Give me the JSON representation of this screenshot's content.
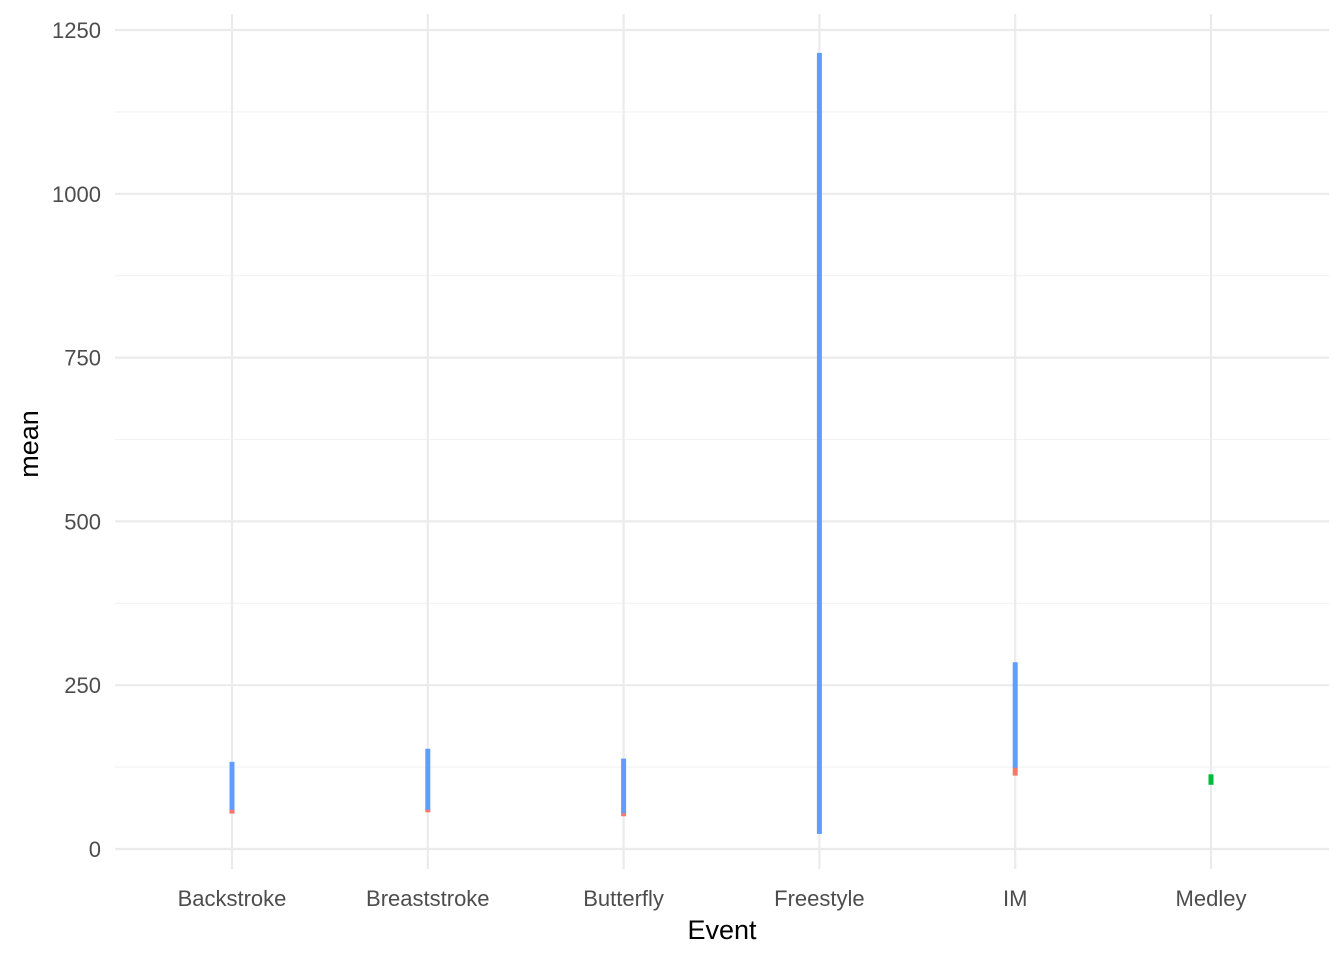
{
  "chart_data": {
    "type": "range",
    "title": "",
    "xlabel": "Event",
    "ylabel": "mean",
    "categories": [
      "Backstroke",
      "Breaststroke",
      "Butterfly",
      "Freestyle",
      "IM",
      "Medley"
    ],
    "ylim": [
      -28,
      1275
    ],
    "yticks": [
      0,
      250,
      500,
      750,
      1000,
      1250
    ],
    "grid": true,
    "legend": "none",
    "series": [
      {
        "color": "#F8766D",
        "ranges": [
          {
            "category": "Backstroke",
            "low": 54,
            "high": 62
          },
          {
            "category": "Breaststroke",
            "low": 56,
            "high": 62
          },
          {
            "category": "Butterfly",
            "low": 50,
            "high": 57
          },
          {
            "category": "IM",
            "low": 112,
            "high": 126
          }
        ]
      },
      {
        "color": "#00BA38",
        "ranges": [
          {
            "category": "Medley",
            "low": 98,
            "high": 114
          }
        ]
      },
      {
        "color": "#619CFF",
        "ranges": [
          {
            "category": "Backstroke",
            "low": 60,
            "high": 133
          },
          {
            "category": "Breaststroke",
            "low": 60,
            "high": 153
          },
          {
            "category": "Butterfly",
            "low": 55,
            "high": 138
          },
          {
            "category": "Freestyle",
            "low": 23,
            "high": 1215
          },
          {
            "category": "IM",
            "low": 124,
            "high": 285
          }
        ]
      }
    ]
  }
}
